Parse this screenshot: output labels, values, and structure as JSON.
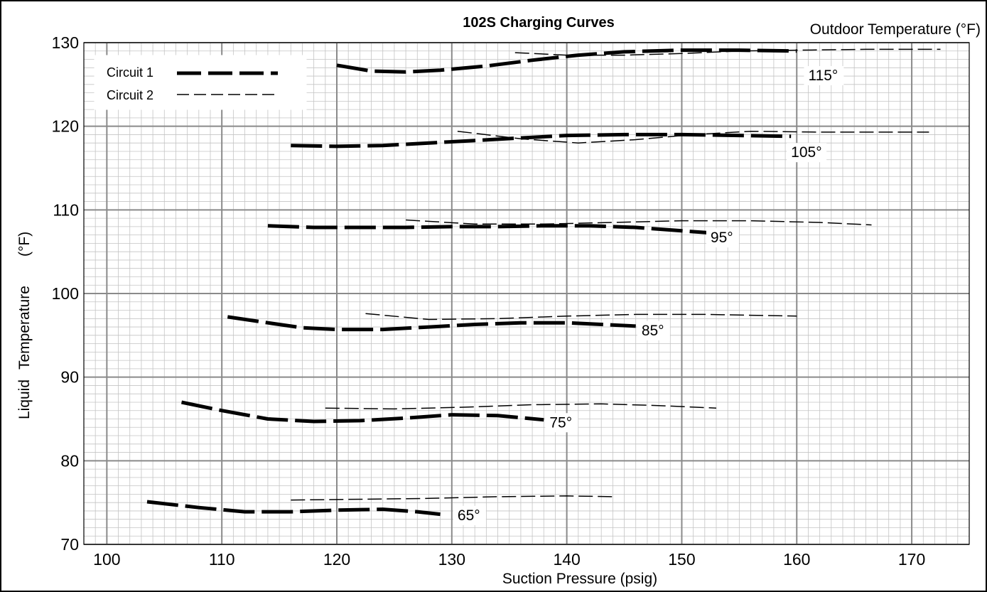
{
  "chart_data": {
    "type": "line",
    "title": "102S Charging Curves",
    "outdoor_label": "Outdoor Temperature (°F)",
    "xlabel": "Suction Pressure (psig)",
    "ylabel_parts": [
      "Liquid",
      "Temperature",
      "(°F)"
    ],
    "xlim": [
      98,
      175
    ],
    "ylim": [
      70,
      130
    ],
    "x_ticks": [
      100,
      110,
      120,
      130,
      140,
      150,
      160,
      170
    ],
    "y_ticks": [
      70,
      80,
      90,
      100,
      110,
      120,
      130
    ],
    "grid": true,
    "legend_position": "top-left",
    "legend": [
      {
        "label": "Circuit 1",
        "style": "heavy-dash"
      },
      {
        "label": "Circuit 2",
        "style": "light-dash"
      }
    ],
    "series": [
      {
        "circuit": "Circuit 1",
        "outdoor": "65°",
        "x": [
          103.5,
          108,
          112,
          116,
          120,
          124,
          127,
          129
        ],
        "y": [
          75.1,
          74.4,
          73.9,
          73.9,
          74.1,
          74.2,
          73.9,
          73.6
        ]
      },
      {
        "circuit": "Circuit 2",
        "outdoor": "65°",
        "x": [
          116,
          122,
          128,
          134,
          140,
          144
        ],
        "y": [
          75.3,
          75.4,
          75.5,
          75.7,
          75.8,
          75.7
        ]
      },
      {
        "circuit": "Circuit 1",
        "outdoor": "75°",
        "x": [
          106.5,
          110,
          114,
          118,
          122,
          126,
          130,
          134,
          138
        ],
        "y": [
          87.0,
          86.0,
          85.0,
          84.7,
          84.8,
          85.1,
          85.5,
          85.4,
          84.9
        ]
      },
      {
        "circuit": "Circuit 2",
        "outdoor": "75°",
        "x": [
          119,
          125,
          131,
          137,
          143,
          148,
          153
        ],
        "y": [
          86.3,
          86.2,
          86.4,
          86.7,
          86.8,
          86.6,
          86.3
        ]
      },
      {
        "circuit": "Circuit 1",
        "outdoor": "85°",
        "x": [
          110.5,
          114,
          117,
          120,
          124,
          128,
          132,
          136,
          140,
          143,
          146
        ],
        "y": [
          97.2,
          96.5,
          95.9,
          95.7,
          95.7,
          96.0,
          96.3,
          96.5,
          96.5,
          96.3,
          96.1
        ]
      },
      {
        "circuit": "Circuit 2",
        "outdoor": "85°",
        "x": [
          122.5,
          128,
          134,
          140,
          146,
          152,
          156,
          160
        ],
        "y": [
          97.6,
          96.9,
          97.0,
          97.3,
          97.5,
          97.5,
          97.4,
          97.3
        ]
      },
      {
        "circuit": "Circuit 1",
        "outdoor": "95°",
        "x": [
          114,
          118,
          122,
          126,
          130,
          134,
          138,
          142,
          146,
          150,
          153
        ],
        "y": [
          108.1,
          107.9,
          107.9,
          107.9,
          108.0,
          108.0,
          108.1,
          108.1,
          107.9,
          107.5,
          107.2
        ]
      },
      {
        "circuit": "Circuit 2",
        "outdoor": "95°",
        "x": [
          126,
          132,
          138,
          144,
          150,
          156,
          162,
          166.5
        ],
        "y": [
          108.8,
          108.3,
          108.3,
          108.5,
          108.7,
          108.7,
          108.5,
          108.2
        ]
      },
      {
        "circuit": "Circuit 1",
        "outdoor": "105°",
        "x": [
          116,
          120,
          124,
          128,
          132,
          136,
          140,
          145,
          150,
          155,
          159.5
        ],
        "y": [
          117.7,
          117.6,
          117.7,
          118.0,
          118.3,
          118.6,
          118.9,
          119.0,
          119.0,
          118.9,
          118.8
        ]
      },
      {
        "circuit": "Circuit 2",
        "outdoor": "105°",
        "x": [
          130.5,
          136,
          141,
          146,
          151,
          156,
          162,
          168,
          171.5
        ],
        "y": [
          119.4,
          118.5,
          118.0,
          118.4,
          119.0,
          119.4,
          119.3,
          119.3,
          119.3
        ]
      },
      {
        "circuit": "Circuit 1",
        "outdoor": "115°",
        "x": [
          120,
          123,
          126,
          129,
          133,
          137,
          141,
          145,
          150,
          155,
          160
        ],
        "y": [
          127.3,
          126.6,
          126.5,
          126.7,
          127.2,
          127.9,
          128.5,
          128.9,
          129.1,
          129.1,
          129.0
        ]
      },
      {
        "circuit": "Circuit 2",
        "outdoor": "115°",
        "x": [
          135.5,
          140,
          145,
          150,
          155,
          160,
          166,
          172.5
        ],
        "y": [
          128.8,
          128.5,
          128.5,
          128.7,
          129.0,
          129.1,
          129.2,
          129.2
        ]
      }
    ],
    "annotations": [
      {
        "text": "115°",
        "x": 161,
        "y": 125.5
      },
      {
        "text": "105°",
        "x": 159.5,
        "y": 116.3
      },
      {
        "text": "95°",
        "x": 152.5,
        "y": 106.1
      },
      {
        "text": "85°",
        "x": 146.5,
        "y": 95.0
      },
      {
        "text": "75°",
        "x": 138.5,
        "y": 84.0
      },
      {
        "text": "65°",
        "x": 130.5,
        "y": 72.9
      }
    ]
  }
}
